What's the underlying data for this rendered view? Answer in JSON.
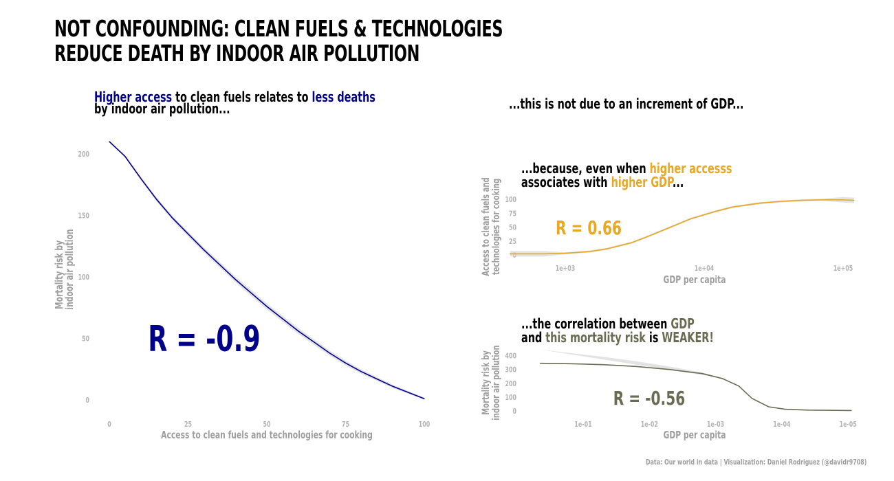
{
  "title": {
    "line1": "NOT CONFOUNDING: CLEAN FUELS & TECHNOLOGIES",
    "line2": "REDUCE DEATH BY INDOOR AIR POLLUTION"
  },
  "subtitle_left": {
    "highlight1": "Higher access",
    "mid1": " to clean fuels relates to ",
    "highlight2": "less deaths",
    "line2": "by indoor air pollution..."
  },
  "subtitle_right": "...this is not due to an increment of GDP...",
  "annot_top": {
    "pre": "...because, even when ",
    "highlight1": "higher accesss",
    "line2_pre": "associates with ",
    "highlight2": "higher GDP",
    "line2_post": "..."
  },
  "annot_bottom": {
    "pre": "...the correlation between ",
    "highlight1": "GDP",
    "line2_pre": "and ",
    "highlight2": "this mortality risk",
    "line2_mid": " is ",
    "highlight3": "WEAKER!"
  },
  "caption": "Data: Our world in data | Visualization: Daniel Rodriguez (@davidr9708)",
  "colors": {
    "navy": "#00008b",
    "gold": "#e8a823",
    "olive": "#6b6b53",
    "axis_text": "#b3b3b3",
    "axis_title": "#9e9e9e",
    "ribbon": "#d9d9d9"
  },
  "chart_data": [
    {
      "type": "line",
      "xlabel": "Access to clean fuels and technologies for cooking",
      "ylabel_lines": [
        "Mortality risk by",
        "indoor air pollution"
      ],
      "x_ticks": [
        "0",
        "25",
        "50",
        "75",
        "100"
      ],
      "y_ticks": [
        "0",
        "50",
        "100",
        "150",
        "200"
      ],
      "xlim": [
        0,
        100
      ],
      "ylim": [
        0,
        210
      ],
      "annotation": "R = -0.9",
      "x": [
        0,
        5,
        10,
        15,
        20,
        25,
        30,
        35,
        40,
        45,
        50,
        55,
        60,
        65,
        70,
        75,
        80,
        85,
        90,
        95,
        100
      ],
      "y": [
        210,
        198,
        180,
        163,
        148,
        135,
        122,
        110,
        98,
        87,
        76,
        66,
        56,
        47,
        38,
        30,
        23,
        17,
        11,
        6,
        1
      ],
      "ribbon": true
    },
    {
      "type": "line",
      "scale": "log",
      "xlabel": "GDP per capita",
      "ylabel_lines": [
        "Access to clean fuels and",
        "technologies for cooking"
      ],
      "x_ticks": [
        "1e+03",
        "1e+04",
        "1e+05"
      ],
      "y_ticks": [
        "0",
        "25",
        "50",
        "75",
        "100"
      ],
      "ylim": [
        -12,
        110
      ],
      "annotation": "R = 0.66",
      "x": [
        400,
        700,
        1000,
        1500,
        2000,
        3000,
        4000,
        6000,
        8000,
        12000,
        16000,
        25000,
        35000,
        50000,
        70000,
        100000,
        120000
      ],
      "y": [
        2,
        2,
        3,
        6,
        11,
        22,
        34,
        52,
        65,
        78,
        86,
        93,
        96,
        98,
        99,
        99,
        98
      ],
      "ribbon": true
    },
    {
      "type": "line",
      "scale": "log",
      "xlabel": "GDP per capita",
      "ylabel_lines": [
        "Mortality risk by",
        "indoor air pollution"
      ],
      "x_ticks": [
        "1e-01",
        "1e-02",
        "1e-03",
        "1e-04",
        "1e-05"
      ],
      "y_ticks": [
        "0",
        "100",
        "200",
        "300",
        "400"
      ],
      "ylim": [
        -20,
        440
      ],
      "annotation": "R = -0.56",
      "x_log": [
        0.35,
        0.8,
        1.3,
        1.8,
        2.3,
        2.8,
        3.1,
        3.35,
        3.55,
        3.8,
        4.05,
        4.4,
        4.8,
        5.05
      ],
      "y": [
        345,
        342,
        335,
        322,
        300,
        270,
        235,
        180,
        90,
        30,
        12,
        6,
        4,
        3
      ],
      "ribbon": true
    }
  ]
}
